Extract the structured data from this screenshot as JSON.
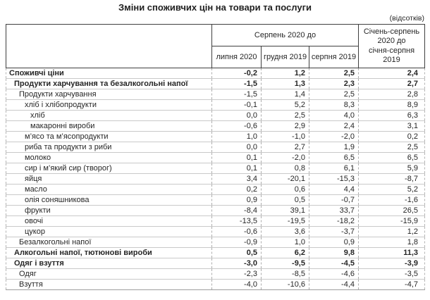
{
  "title": "Зміни споживчих цін на товари та послуги",
  "unit_note": "(відсотків)",
  "chart_data": {
    "type": "table",
    "title": "Зміни споживчих цін на товари та послуги",
    "unit": "відсотків",
    "header": {
      "group_label": "Серпень 2020 до",
      "sub_columns": [
        "липня 2020",
        "грудня 2019",
        "серпня 2019"
      ],
      "last_column": "Січень-серпень\n2020 до\nсічня-серпня\n2019"
    },
    "rows": [
      {
        "label": "Споживчі ціни",
        "bold": true,
        "indent": 0,
        "values": [
          -0.2,
          1.2,
          2.5,
          2.4
        ]
      },
      {
        "label": "Продукти харчування та безалкогольні напої",
        "bold": true,
        "indent": 1,
        "values": [
          -1.5,
          1.3,
          2.3,
          2.7
        ]
      },
      {
        "label": "Продукти харчування",
        "bold": false,
        "indent": 2,
        "values": [
          -1.5,
          1.4,
          2.5,
          2.8
        ]
      },
      {
        "label": "хліб і хлібопродукти",
        "bold": false,
        "indent": 3,
        "values": [
          -0.1,
          5.2,
          8.3,
          8.9
        ]
      },
      {
        "label": "хліб",
        "bold": false,
        "indent": 4,
        "values": [
          0.0,
          2.5,
          4.0,
          6.3
        ]
      },
      {
        "label": "макаронні вироби",
        "bold": false,
        "indent": 4,
        "values": [
          -0.6,
          2.9,
          2.4,
          3.1
        ]
      },
      {
        "label": "м’ясо та м’ясопродукти",
        "bold": false,
        "indent": 3,
        "values": [
          1.0,
          -1.0,
          -2.0,
          0.2
        ]
      },
      {
        "label": "риба та продукти з риби",
        "bold": false,
        "indent": 3,
        "values": [
          0.0,
          2.7,
          1.9,
          2.5
        ]
      },
      {
        "label": "молоко",
        "bold": false,
        "indent": 3,
        "values": [
          0.1,
          -2.0,
          6.5,
          6.5
        ]
      },
      {
        "label": "сир і м’який сир (творог)",
        "bold": false,
        "indent": 3,
        "values": [
          0.1,
          0.8,
          6.1,
          5.9
        ]
      },
      {
        "label": "яйця",
        "bold": false,
        "indent": 3,
        "values": [
          3.4,
          -20.1,
          -15.3,
          -8.7
        ]
      },
      {
        "label": "масло",
        "bold": false,
        "indent": 3,
        "values": [
          0.2,
          0.6,
          4.4,
          5.2
        ]
      },
      {
        "label": "олія соняшникова",
        "bold": false,
        "indent": 3,
        "values": [
          0.9,
          0.5,
          -0.7,
          -1.6
        ]
      },
      {
        "label": "фрукти",
        "bold": false,
        "indent": 3,
        "values": [
          -8.4,
          39.1,
          33.7,
          26.5
        ]
      },
      {
        "label": "овочі",
        "bold": false,
        "indent": 3,
        "values": [
          -13.5,
          -19.5,
          -18.2,
          -15.9
        ]
      },
      {
        "label": "цукор",
        "bold": false,
        "indent": 3,
        "values": [
          -0.6,
          3.6,
          -3.7,
          1.2
        ]
      },
      {
        "label": "Безалкогольні напої",
        "bold": false,
        "indent": 2,
        "values": [
          -0.9,
          1.0,
          0.9,
          1.8
        ]
      },
      {
        "label": "Алкогольні напої, тютюнові вироби",
        "bold": true,
        "indent": 1,
        "values": [
          0.5,
          6.2,
          9.8,
          11.3
        ]
      },
      {
        "label": "Одяг і взуття",
        "bold": true,
        "indent": 1,
        "values": [
          -3.0,
          -9.5,
          -4.5,
          -3.9
        ]
      },
      {
        "label": "Одяг",
        "bold": false,
        "indent": 2,
        "values": [
          -2.3,
          -8.5,
          -4.6,
          -3.5
        ]
      },
      {
        "label": "Взуття",
        "bold": false,
        "indent": 2,
        "values": [
          -4.0,
          -10.6,
          -4.4,
          -4.7
        ]
      }
    ],
    "layout": {
      "decimal_separator": ",",
      "grid": "light-gray rows, dashed column separators, solid header borders"
    }
  }
}
